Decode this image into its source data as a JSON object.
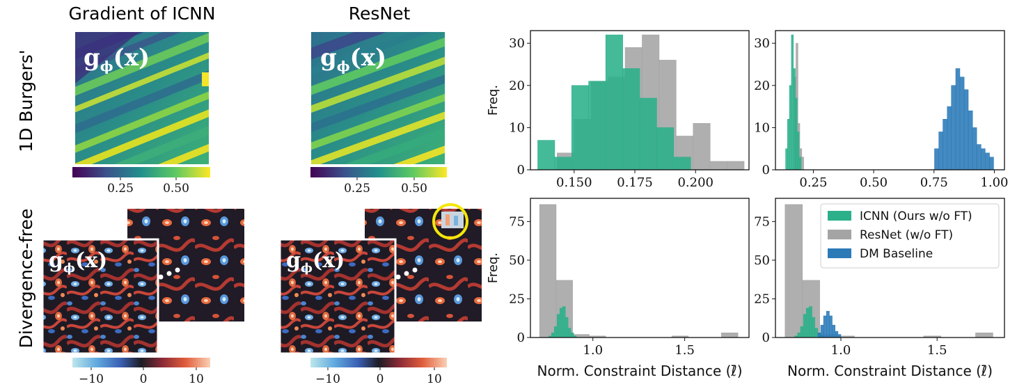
{
  "figure": {
    "column_titles": [
      "Gradient of ICNN",
      "ResNet"
    ],
    "row_labels": [
      "1D Burgers'",
      "Divergence-free"
    ],
    "map_label": "g_ϕ(x)",
    "map_label_parts": {
      "g": "g",
      "sub": "ϕ",
      "arg": "(x)"
    },
    "colorbars": {
      "burgers": {
        "ticks": [
          "0.25",
          "0.50"
        ]
      },
      "divfree": {
        "ticks": [
          "−10",
          "0",
          "10"
        ]
      }
    },
    "colors": {
      "icnn": "#2bb08a",
      "resnet": "#a4a4a4",
      "dm": "#2a7ab8",
      "highlight_circle": "#f5e60a"
    }
  },
  "chart_data": [
    {
      "id": "burgers-zoom",
      "type": "bar",
      "title": "",
      "xlabel": "",
      "ylabel": "Freq.",
      "xlim": [
        0.132,
        0.222
      ],
      "ylim": [
        0,
        33
      ],
      "xticks": [
        "0.150",
        "0.175",
        "0.200"
      ],
      "xtick_values": [
        0.15,
        0.175,
        0.2
      ],
      "yticks": [
        "0",
        "10",
        "20",
        "30"
      ],
      "ytick_values": [
        0,
        10,
        20,
        30
      ],
      "series": [
        {
          "name": "ResNet (w/o FT)",
          "color": "#a4a4a4",
          "bins": [
            [
              0.136,
              0.143,
              0
            ],
            [
              0.143,
              0.15,
              4
            ],
            [
              0.15,
              0.157,
              12
            ],
            [
              0.157,
              0.164,
              21
            ],
            [
              0.164,
              0.171,
              22
            ],
            [
              0.171,
              0.178,
              29
            ],
            [
              0.178,
              0.185,
              32
            ],
            [
              0.185,
              0.192,
              26
            ],
            [
              0.192,
              0.199,
              8
            ],
            [
              0.199,
              0.206,
              11
            ],
            [
              0.206,
              0.213,
              2
            ],
            [
              0.213,
              0.22,
              2
            ]
          ]
        },
        {
          "name": "ICNN (Ours w/o FT)",
          "color": "#2bb08a",
          "bins": [
            [
              0.135,
              0.142,
              7
            ],
            [
              0.142,
              0.149,
              3
            ],
            [
              0.149,
              0.156,
              20
            ],
            [
              0.156,
              0.163,
              21
            ],
            [
              0.163,
              0.17,
              32
            ],
            [
              0.17,
              0.177,
              24
            ],
            [
              0.177,
              0.184,
              17
            ],
            [
              0.184,
              0.191,
              10
            ],
            [
              0.191,
              0.198,
              3
            ]
          ]
        }
      ]
    },
    {
      "id": "burgers-full",
      "type": "bar",
      "title": "",
      "xlabel": "",
      "ylabel": "",
      "xlim": [
        0.093,
        1.042
      ],
      "ylim": [
        0,
        33
      ],
      "xticks": [
        "0.25",
        "0.50",
        "0.75",
        "1.00"
      ],
      "xtick_values": [
        0.25,
        0.5,
        0.75,
        1.0
      ],
      "yticks": [
        "0",
        "10",
        "20",
        "30"
      ],
      "ytick_values": [
        0,
        10,
        20,
        30
      ],
      "series": [
        {
          "name": "ResNet (w/o FT)",
          "color": "#a4a4a4",
          "bins": [
            [
              0.17,
              0.178,
              22
            ],
            [
              0.178,
              0.186,
              30
            ],
            [
              0.186,
              0.194,
              11
            ],
            [
              0.194,
              0.202,
              5
            ],
            [
              0.202,
              0.21,
              3
            ]
          ]
        },
        {
          "name": "ICNN (Ours w/o FT)",
          "color": "#2bb08a",
          "bins": [
            [
              0.135,
              0.143,
              5
            ],
            [
              0.143,
              0.151,
              12
            ],
            [
              0.151,
              0.159,
              20
            ],
            [
              0.159,
              0.167,
              32
            ],
            [
              0.167,
              0.175,
              24
            ],
            [
              0.175,
              0.183,
              17
            ],
            [
              0.183,
              0.191,
              9
            ],
            [
              0.191,
              0.199,
              3
            ]
          ]
        },
        {
          "name": "DM Baseline",
          "color": "#2a7ab8",
          "bins": [
            [
              0.735,
              0.752,
              0
            ],
            [
              0.752,
              0.77,
              5
            ],
            [
              0.77,
              0.787,
              9
            ],
            [
              0.787,
              0.805,
              12
            ],
            [
              0.805,
              0.822,
              15
            ],
            [
              0.822,
              0.84,
              20
            ],
            [
              0.84,
              0.857,
              24
            ],
            [
              0.857,
              0.875,
              22
            ],
            [
              0.875,
              0.892,
              19
            ],
            [
              0.892,
              0.91,
              14
            ],
            [
              0.91,
              0.927,
              10
            ],
            [
              0.927,
              0.945,
              6
            ],
            [
              0.945,
              0.962,
              5
            ],
            [
              0.962,
              0.98,
              4
            ],
            [
              0.98,
              0.997,
              3
            ]
          ]
        }
      ]
    },
    {
      "id": "divfree-a",
      "type": "bar",
      "title": "",
      "xlabel": "Norm. Constraint Distance (ℓ̄)",
      "ylabel": "Freq.",
      "xlim": [
        0.66,
        1.85
      ],
      "ylim": [
        0,
        90
      ],
      "xticks": [
        "1.0",
        "1.5"
      ],
      "xtick_values": [
        1.0,
        1.5
      ],
      "yticks": [
        "0",
        "25",
        "50",
        "75"
      ],
      "ytick_values": [
        0,
        25,
        50,
        75
      ],
      "series": [
        {
          "name": "ResNet (w/o FT)",
          "color": "#a4a4a4",
          "bins": [
            [
              0.71,
              0.8,
              86
            ],
            [
              0.8,
              0.89,
              37
            ],
            [
              0.89,
              0.98,
              2
            ],
            [
              0.98,
              1.07,
              1
            ],
            [
              1.07,
              1.16,
              0
            ],
            [
              1.16,
              1.25,
              0
            ],
            [
              1.25,
              1.34,
              0
            ],
            [
              1.34,
              1.43,
              0
            ],
            [
              1.43,
              1.52,
              1
            ],
            [
              1.52,
              1.61,
              0
            ],
            [
              1.61,
              1.7,
              0
            ],
            [
              1.7,
              1.79,
              3
            ]
          ]
        },
        {
          "name": "ICNN (Ours w/o FT)",
          "color": "#2bb08a",
          "bins": [
            [
              0.76,
              0.775,
              1
            ],
            [
              0.775,
              0.79,
              3
            ],
            [
              0.79,
              0.805,
              7
            ],
            [
              0.805,
              0.82,
              15
            ],
            [
              0.82,
              0.835,
              19
            ],
            [
              0.835,
              0.85,
              20
            ],
            [
              0.85,
              0.865,
              13
            ],
            [
              0.865,
              0.88,
              6
            ],
            [
              0.88,
              0.895,
              3
            ],
            [
              0.895,
              0.91,
              1
            ]
          ]
        }
      ]
    },
    {
      "id": "divfree-b",
      "type": "bar",
      "title": "",
      "xlabel": "Norm. Constraint Distance (ℓ̄)",
      "ylabel": "",
      "xlim": [
        0.66,
        1.85
      ],
      "ylim": [
        0,
        90
      ],
      "xticks": [
        "1.0",
        "1.5"
      ],
      "xtick_values": [
        1.0,
        1.5
      ],
      "yticks": [
        "0",
        "25",
        "50",
        "75"
      ],
      "ytick_values": [
        0,
        25,
        50,
        75
      ],
      "legend": {
        "position": "top-right",
        "entries": [
          "ICNN (Ours w/o FT)",
          "ResNet (w/o FT)",
          "DM Baseline"
        ]
      },
      "series": [
        {
          "name": "ResNet (w/o FT)",
          "color": "#a4a4a4",
          "bins": [
            [
              0.71,
              0.8,
              86
            ],
            [
              0.8,
              0.89,
              37
            ],
            [
              0.89,
              0.98,
              2
            ],
            [
              0.98,
              1.07,
              1
            ],
            [
              1.07,
              1.16,
              0
            ],
            [
              1.16,
              1.25,
              0
            ],
            [
              1.25,
              1.34,
              0
            ],
            [
              1.34,
              1.43,
              0
            ],
            [
              1.43,
              1.52,
              1
            ],
            [
              1.52,
              1.61,
              0
            ],
            [
              1.61,
              1.7,
              0
            ],
            [
              1.7,
              1.79,
              3
            ]
          ]
        },
        {
          "name": "ICNN (Ours w/o FT)",
          "color": "#2bb08a",
          "bins": [
            [
              0.76,
              0.775,
              1
            ],
            [
              0.775,
              0.79,
              3
            ],
            [
              0.79,
              0.805,
              7
            ],
            [
              0.805,
              0.82,
              15
            ],
            [
              0.82,
              0.835,
              19
            ],
            [
              0.835,
              0.85,
              20
            ],
            [
              0.85,
              0.865,
              13
            ],
            [
              0.865,
              0.88,
              6
            ],
            [
              0.88,
              0.895,
              3
            ],
            [
              0.895,
              0.91,
              1
            ]
          ]
        },
        {
          "name": "DM Baseline",
          "color": "#2a7ab8",
          "bins": [
            [
              0.88,
              0.895,
              3
            ],
            [
              0.895,
              0.91,
              8
            ],
            [
              0.91,
              0.925,
              14
            ],
            [
              0.925,
              0.94,
              17
            ],
            [
              0.94,
              0.955,
              14
            ],
            [
              0.955,
              0.97,
              8
            ],
            [
              0.97,
              0.985,
              4
            ],
            [
              0.985,
              1.0,
              2
            ]
          ]
        }
      ]
    }
  ]
}
